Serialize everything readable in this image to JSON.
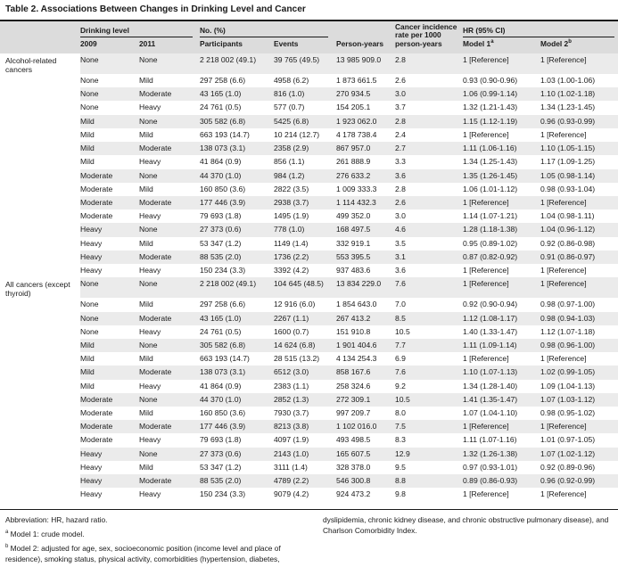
{
  "title": "Table 2. Associations Between Changes in Drinking Level and Cancer",
  "headers": {
    "drinking_level": "Drinking level",
    "y2009": "2009",
    "y2011": "2011",
    "no_pct": "No. (%)",
    "participants": "Participants",
    "events": "Events",
    "person_years": "Person-years",
    "incidence": [
      "Cancer incidence",
      "rate per 1000",
      "person-years"
    ],
    "hr": "HR (95% CI)",
    "model1": "Model 1",
    "model1_sup": "a",
    "model2": "Model 2",
    "model2_sup": "b"
  },
  "groups": [
    {
      "label": "Alcohol-related cancers",
      "rows": [
        [
          "None",
          "None",
          "2 218 002 (49.1)",
          "39 765 (49.5)",
          "13 985 909.0",
          "2.8",
          "1 [Reference]",
          "1 [Reference]"
        ],
        [
          "None",
          "Mild",
          "297 258 (6.6)",
          "4958 (6.2)",
          "1 873 661.5",
          "2.6",
          "0.93 (0.90-0.96)",
          "1.03 (1.00-1.06)"
        ],
        [
          "None",
          "Moderate",
          "43 165 (1.0)",
          "816 (1.0)",
          "270 934.5",
          "3.0",
          "1.06 (0.99-1.14)",
          "1.10 (1.02-1.18)"
        ],
        [
          "None",
          "Heavy",
          "24 761 (0.5)",
          "577 (0.7)",
          "154 205.1",
          "3.7",
          "1.32 (1.21-1.43)",
          "1.34 (1.23-1.45)"
        ],
        [
          "Mild",
          "None",
          "305 582 (6.8)",
          "5425 (6.8)",
          "1 923 062.0",
          "2.8",
          "1.15 (1.12-1.19)",
          "0.96 (0.93-0.99)"
        ],
        [
          "Mild",
          "Mild",
          "663 193 (14.7)",
          "10 214 (12.7)",
          "4 178 738.4",
          "2.4",
          "1 [Reference]",
          "1 [Reference]"
        ],
        [
          "Mild",
          "Moderate",
          "138 073 (3.1)",
          "2358 (2.9)",
          "867 957.0",
          "2.7",
          "1.11 (1.06-1.16)",
          "1.10 (1.05-1.15)"
        ],
        [
          "Mild",
          "Heavy",
          "41 864 (0.9)",
          "856 (1.1)",
          "261 888.9",
          "3.3",
          "1.34 (1.25-1.43)",
          "1.17 (1.09-1.25)"
        ],
        [
          "Moderate",
          "None",
          "44 370 (1.0)",
          "984 (1.2)",
          "276 633.2",
          "3.6",
          "1.35 (1.26-1.45)",
          "1.05 (0.98-1.14)"
        ],
        [
          "Moderate",
          "Mild",
          "160 850 (3.6)",
          "2822 (3.5)",
          "1 009 333.3",
          "2.8",
          "1.06 (1.01-1.12)",
          "0.98 (0.93-1.04)"
        ],
        [
          "Moderate",
          "Moderate",
          "177 446 (3.9)",
          "2938 (3.7)",
          "1 114 432.3",
          "2.6",
          "1 [Reference]",
          "1 [Reference]"
        ],
        [
          "Moderate",
          "Heavy",
          "79 693 (1.8)",
          "1495 (1.9)",
          "499 352.0",
          "3.0",
          "1.14 (1.07-1.21)",
          "1.04 (0.98-1.11)"
        ],
        [
          "Heavy",
          "None",
          "27 373 (0.6)",
          "778 (1.0)",
          "168 497.5",
          "4.6",
          "1.28 (1.18-1.38)",
          "1.04 (0.96-1.12)"
        ],
        [
          "Heavy",
          "Mild",
          "53 347 (1.2)",
          "1149 (1.4)",
          "332 919.1",
          "3.5",
          "0.95 (0.89-1.02)",
          "0.92 (0.86-0.98)"
        ],
        [
          "Heavy",
          "Moderate",
          "88 535 (2.0)",
          "1736 (2.2)",
          "553 395.5",
          "3.1",
          "0.87 (0.82-0.92)",
          "0.91 (0.86-0.97)"
        ],
        [
          "Heavy",
          "Heavy",
          "150 234 (3.3)",
          "3392 (4.2)",
          "937 483.6",
          "3.6",
          "1 [Reference]",
          "1 [Reference]"
        ]
      ]
    },
    {
      "label": "All cancers (except thyroid)",
      "rows": [
        [
          "None",
          "None",
          "2 218 002 (49.1)",
          "104 645 (48.5)",
          "13 834 229.0",
          "7.6",
          "1 [Reference]",
          "1 [Reference]"
        ],
        [
          "None",
          "Mild",
          "297 258 (6.6)",
          "12 916 (6.0)",
          "1 854 643.0",
          "7.0",
          "0.92 (0.90-0.94)",
          "0.98 (0.97-1.00)"
        ],
        [
          "None",
          "Moderate",
          "43 165 (1.0)",
          "2267 (1.1)",
          "267 413.2",
          "8.5",
          "1.12 (1.08-1.17)",
          "0.98 (0.94-1.03)"
        ],
        [
          "None",
          "Heavy",
          "24 761 (0.5)",
          "1600 (0.7)",
          "151 910.8",
          "10.5",
          "1.40 (1.33-1.47)",
          "1.12 (1.07-1.18)"
        ],
        [
          "Mild",
          "None",
          "305 582 (6.8)",
          "14 624 (6.8)",
          "1 901 404.6",
          "7.7",
          "1.11 (1.09-1.14)",
          "0.98 (0.96-1.00)"
        ],
        [
          "Mild",
          "Mild",
          "663 193 (14.7)",
          "28 515 (13.2)",
          "4 134 254.3",
          "6.9",
          "1 [Reference]",
          "1 [Reference]"
        ],
        [
          "Mild",
          "Moderate",
          "138 073 (3.1)",
          "6512 (3.0)",
          "858 167.6",
          "7.6",
          "1.10 (1.07-1.13)",
          "1.02 (0.99-1.05)"
        ],
        [
          "Mild",
          "Heavy",
          "41 864 (0.9)",
          "2383 (1.1)",
          "258 324.6",
          "9.2",
          "1.34 (1.28-1.40)",
          "1.09 (1.04-1.13)"
        ],
        [
          "Moderate",
          "None",
          "44 370 (1.0)",
          "2852 (1.3)",
          "272 309.1",
          "10.5",
          "1.41 (1.35-1.47)",
          "1.07 (1.03-1.12)"
        ],
        [
          "Moderate",
          "Mild",
          "160 850 (3.6)",
          "7930 (3.7)",
          "997 209.7",
          "8.0",
          "1.07 (1.04-1.10)",
          "0.98 (0.95-1.02)"
        ],
        [
          "Moderate",
          "Moderate",
          "177 446 (3.9)",
          "8213 (3.8)",
          "1 102 016.0",
          "7.5",
          "1 [Reference]",
          "1 [Reference]"
        ],
        [
          "Moderate",
          "Heavy",
          "79 693 (1.8)",
          "4097 (1.9)",
          "493 498.5",
          "8.3",
          "1.11 (1.07-1.16)",
          "1.01 (0.97-1.05)"
        ],
        [
          "Heavy",
          "None",
          "27 373 (0.6)",
          "2143 (1.0)",
          "165 607.5",
          "12.9",
          "1.32 (1.26-1.38)",
          "1.07 (1.02-1.12)"
        ],
        [
          "Heavy",
          "Mild",
          "53 347 (1.2)",
          "3111 (1.4)",
          "328 378.0",
          "9.5",
          "0.97 (0.93-1.01)",
          "0.92 (0.89-0.96)"
        ],
        [
          "Heavy",
          "Moderate",
          "88 535 (2.0)",
          "4789 (2.2)",
          "546 300.8",
          "8.8",
          "0.89 (0.86-0.93)",
          "0.96 (0.92-0.99)"
        ],
        [
          "Heavy",
          "Heavy",
          "150 234 (3.3)",
          "9079 (4.2)",
          "924 473.2",
          "9.8",
          "1 [Reference]",
          "1 [Reference]"
        ]
      ]
    }
  ],
  "footnotes": {
    "abbreviation": "Abbreviation: HR, hazard ratio.",
    "a_sup": "a",
    "a_text": "Model 1: crude model.",
    "b_sup": "b",
    "b_line1": "Model 2: adjusted for age, sex, socioeconomic position (income level and place of",
    "b_line2": "residence), smoking status, physical activity, comorbidities (hypertension, diabetes,",
    "b_line3": "dyslipidemia, chronic kidney disease, and chronic obstructive pulmonary disease), and",
    "b_line4": "Charlson Comorbidity Index."
  }
}
